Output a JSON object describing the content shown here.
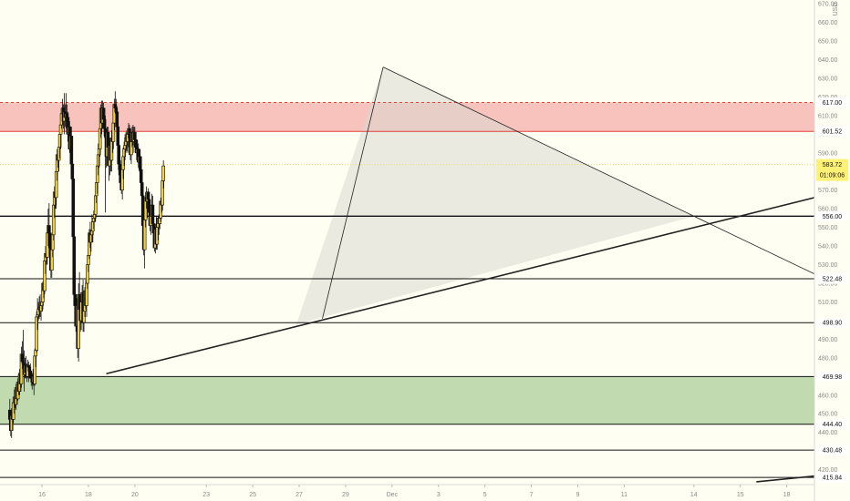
{
  "chart_data": {
    "type": "candlestick",
    "currency": "USD",
    "ylim": [
      412,
      672
    ],
    "xlim": [
      -11,
      901
    ],
    "y_ticks": [
      670,
      660,
      650,
      640,
      630,
      620,
      610,
      600,
      590,
      580,
      570,
      560,
      550,
      540,
      530,
      520,
      510,
      500,
      490,
      480,
      470,
      460,
      450,
      440,
      430,
      420
    ],
    "y_tick_labels": [
      "670.00",
      "660.00",
      "650.00",
      "640.00",
      "630.00",
      "620.00",
      "610.00",
      "600.00",
      "590.00",
      "580.00",
      "570.00",
      "560.00",
      "550.00",
      "540.00",
      "530.00",
      "520.00",
      "510.00",
      "500.00",
      "490.00",
      "480.00",
      "470.00",
      "460.00",
      "450.00",
      "440.00",
      "430.00",
      "420.00"
    ],
    "x_ticks": [
      {
        "i": 36,
        "label": "16"
      },
      {
        "i": 88,
        "label": "18"
      },
      {
        "i": 140,
        "label": "20"
      },
      {
        "i": 220,
        "label": "23"
      },
      {
        "i": 272,
        "label": "25"
      },
      {
        "i": 324,
        "label": "27"
      },
      {
        "i": 376,
        "label": "29"
      },
      {
        "i": 428,
        "label": "Dec"
      },
      {
        "i": 480,
        "label": "3"
      },
      {
        "i": 532,
        "label": "5"
      },
      {
        "i": 584,
        "label": "7"
      },
      {
        "i": 636,
        "label": "9"
      },
      {
        "i": 688,
        "label": "11"
      },
      {
        "i": 766,
        "label": "14"
      },
      {
        "i": 818,
        "label": "15"
      },
      {
        "i": 870,
        "label": "18"
      }
    ],
    "price_levels": [
      {
        "value": 617.0,
        "label": "617.00",
        "style": "dashed-red"
      },
      {
        "value": 601.52,
        "label": "601.52",
        "style": "red"
      },
      {
        "value": 556.0,
        "label": "556.00",
        "style": "black"
      },
      {
        "value": 522.48,
        "label": "522.48",
        "style": "black"
      },
      {
        "value": 498.9,
        "label": "498.90",
        "style": "black"
      },
      {
        "value": 469.98,
        "label": "469.98",
        "style": "black"
      },
      {
        "value": 444.4,
        "label": "444.40",
        "style": "black"
      },
      {
        "value": 430.48,
        "label": "430.48",
        "style": "black"
      },
      {
        "value": 415.84,
        "label": "415.84",
        "style": "black"
      }
    ],
    "last_price": {
      "value": 583.72,
      "label": "583.72",
      "countdown": "01:09:06"
    },
    "zones": [
      {
        "from": 601.52,
        "to": 617.0,
        "color": "#f7b8b2"
      },
      {
        "from": 444.4,
        "to": 469.98,
        "color": "#b6d3a3"
      }
    ],
    "trendlines": [
      {
        "i1": 108,
        "v1": 471.5,
        "i2": 901,
        "v2": 566.0,
        "width": 1.6
      },
      {
        "i1": 350,
        "v1": 501.0,
        "i2": 418,
        "v2": 636.0,
        "width": 0.8
      },
      {
        "i1": 418,
        "v1": 636.0,
        "i2": 901,
        "v2": 525.0,
        "width": 0.8
      },
      {
        "i1": 836,
        "v1": 413.5,
        "i2": 901,
        "v2": 416.6,
        "width": 1.6
      }
    ],
    "triangle": {
      "points": [
        [
          321,
          498.0
        ],
        [
          418,
          636.0
        ],
        [
          766,
          556.0
        ]
      ],
      "color": "#d9d9cf"
    },
    "candle_colors": {
      "up": "#f2d23b",
      "down": "#111111"
    },
    "candles": [
      [
        452,
        458,
        442,
        447
      ],
      [
        447,
        451,
        438,
        441
      ],
      [
        441,
        453,
        437,
        449
      ],
      [
        449,
        455,
        441,
        447
      ],
      [
        447,
        458,
        445,
        456
      ],
      [
        456,
        463,
        450,
        459
      ],
      [
        459,
        462,
        453,
        455
      ],
      [
        455,
        466,
        452,
        464
      ],
      [
        464,
        466,
        455,
        458
      ],
      [
        458,
        469,
        457,
        467
      ],
      [
        467,
        472,
        460,
        462
      ],
      [
        462,
        474,
        460,
        471
      ],
      [
        471,
        478,
        462,
        466
      ],
      [
        466,
        486,
        464,
        482
      ],
      [
        482,
        489,
        474,
        478
      ],
      [
        478,
        495,
        473,
        477
      ],
      [
        477,
        484,
        462,
        471
      ],
      [
        471,
        480,
        469,
        476
      ],
      [
        476,
        481,
        469,
        472
      ],
      [
        472,
        477,
        467,
        470
      ],
      [
        470,
        479,
        469,
        476
      ],
      [
        476,
        478,
        467,
        475
      ],
      [
        475,
        476,
        469,
        473
      ],
      [
        473,
        477,
        470,
        471
      ],
      [
        471,
        473,
        465,
        469
      ],
      [
        469,
        472,
        463,
        467
      ],
      [
        467,
        474,
        465,
        470
      ],
      [
        470,
        472,
        460,
        466
      ],
      [
        466,
        485,
        465,
        481
      ],
      [
        481,
        487,
        475,
        484
      ],
      [
        484,
        505,
        483,
        502
      ],
      [
        502,
        512,
        495,
        503
      ],
      [
        503,
        510,
        500,
        506
      ],
      [
        506,
        513,
        501,
        507
      ],
      [
        507,
        514,
        502,
        505
      ],
      [
        505,
        510,
        500,
        508
      ],
      [
        508,
        515,
        505,
        510
      ],
      [
        510,
        521,
        506,
        520
      ],
      [
        520,
        523,
        512,
        516
      ],
      [
        516,
        535,
        514,
        532
      ],
      [
        532,
        540,
        525,
        536
      ],
      [
        536,
        539,
        530,
        534
      ],
      [
        534,
        549,
        530,
        547
      ],
      [
        547,
        560,
        540,
        551
      ],
      [
        551,
        563,
        545,
        547
      ],
      [
        547,
        551,
        535,
        539
      ],
      [
        539,
        542,
        523,
        527
      ],
      [
        527,
        542,
        523,
        538
      ],
      [
        538,
        552,
        534,
        546
      ],
      [
        546,
        567,
        543,
        562
      ],
      [
        562,
        572,
        555,
        569
      ],
      [
        569,
        573,
        560,
        566
      ],
      [
        566,
        583,
        560,
        580
      ],
      [
        580,
        592,
        575,
        589
      ],
      [
        589,
        593,
        582,
        586
      ],
      [
        586,
        596,
        580,
        593
      ],
      [
        593,
        602,
        587,
        600
      ],
      [
        600,
        609,
        592,
        605
      ],
      [
        605,
        614,
        603,
        611
      ],
      [
        611,
        619,
        605,
        614
      ],
      [
        614,
        616,
        603,
        607
      ],
      [
        607,
        622,
        600,
        612
      ],
      [
        612,
        616,
        604,
        609
      ],
      [
        609,
        622,
        603,
        611
      ],
      [
        611,
        616,
        600,
        609
      ],
      [
        609,
        612,
        596,
        600
      ],
      [
        600,
        607,
        595,
        604
      ],
      [
        604,
        607,
        590,
        592
      ],
      [
        592,
        603,
        585,
        599
      ],
      [
        599,
        604,
        582,
        584
      ],
      [
        584,
        590,
        574,
        576
      ],
      [
        576,
        576,
        540,
        545
      ],
      [
        545,
        548,
        512,
        514
      ],
      [
        514,
        520,
        504,
        508
      ],
      [
        508,
        514,
        494,
        497
      ],
      [
        497,
        512,
        490,
        508
      ],
      [
        508,
        513,
        480,
        485
      ],
      [
        485,
        520,
        478,
        514
      ],
      [
        514,
        526,
        502,
        506
      ],
      [
        506,
        513,
        494,
        500
      ],
      [
        500,
        512,
        495,
        510
      ],
      [
        510,
        519,
        506,
        515
      ],
      [
        515,
        522,
        494,
        499
      ],
      [
        499,
        509,
        494,
        505
      ],
      [
        505,
        518,
        502,
        516
      ],
      [
        516,
        522,
        506,
        508
      ],
      [
        508,
        523,
        502,
        520
      ],
      [
        520,
        534,
        517,
        530
      ],
      [
        530,
        539,
        526,
        535
      ],
      [
        535,
        549,
        533,
        547
      ],
      [
        547,
        553,
        539,
        542
      ],
      [
        542,
        549,
        537,
        546
      ],
      [
        546,
        557,
        542,
        548
      ],
      [
        548,
        555,
        542,
        553
      ],
      [
        553,
        559,
        549,
        555
      ],
      [
        555,
        560,
        553,
        557
      ],
      [
        557,
        569,
        553,
        567
      ],
      [
        567,
        577,
        563,
        574
      ],
      [
        574,
        586,
        568,
        583
      ],
      [
        583,
        595,
        578,
        589
      ],
      [
        589,
        596,
        582,
        592
      ],
      [
        592,
        606,
        588,
        603
      ],
      [
        603,
        616,
        598,
        614
      ],
      [
        614,
        618,
        600,
        606
      ],
      [
        606,
        618,
        603,
        614
      ],
      [
        614,
        617,
        604,
        608
      ],
      [
        608,
        613,
        598,
        603
      ],
      [
        603,
        610,
        558,
        599
      ],
      [
        599,
        603,
        582,
        588
      ],
      [
        588,
        604,
        583,
        601
      ],
      [
        601,
        604,
        588,
        593
      ],
      [
        593,
        596,
        575,
        583
      ],
      [
        583,
        598,
        578,
        594
      ],
      [
        594,
        598,
        580,
        586
      ],
      [
        586,
        602,
        580,
        598
      ],
      [
        598,
        604,
        590,
        596
      ],
      [
        596,
        610,
        592,
        606
      ],
      [
        606,
        619,
        602,
        616
      ],
      [
        616,
        623,
        611,
        614
      ],
      [
        614,
        619,
        610,
        612
      ],
      [
        612,
        615,
        601,
        604
      ],
      [
        604,
        609,
        590,
        594
      ],
      [
        594,
        598,
        578,
        584
      ],
      [
        584,
        590,
        576,
        581
      ],
      [
        581,
        586,
        572,
        574
      ],
      [
        574,
        580,
        568,
        570
      ],
      [
        570,
        585,
        565,
        581
      ],
      [
        581,
        593,
        576,
        588
      ],
      [
        588,
        596,
        583,
        592
      ],
      [
        592,
        600,
        586,
        594
      ],
      [
        594,
        601,
        590,
        598
      ],
      [
        598,
        602,
        591,
        596
      ],
      [
        596,
        601,
        590,
        600
      ],
      [
        600,
        606,
        593,
        603
      ],
      [
        603,
        605,
        595,
        598
      ],
      [
        598,
        602,
        586,
        589
      ],
      [
        589,
        600,
        584,
        596
      ],
      [
        596,
        604,
        593,
        601
      ],
      [
        601,
        605,
        594,
        596
      ],
      [
        596,
        604,
        590,
        601
      ],
      [
        601,
        604,
        594,
        597
      ],
      [
        597,
        600,
        590,
        593
      ],
      [
        593,
        596,
        586,
        590
      ],
      [
        590,
        597,
        586,
        592
      ],
      [
        592,
        595,
        582,
        585
      ],
      [
        585,
        592,
        580,
        588
      ],
      [
        588,
        592,
        578,
        581
      ],
      [
        581,
        584,
        571,
        574
      ],
      [
        574,
        579,
        562,
        567
      ],
      [
        567,
        569,
        543,
        551
      ],
      [
        551,
        556,
        535,
        538
      ],
      [
        538,
        558,
        528,
        554
      ],
      [
        554,
        569,
        550,
        566
      ],
      [
        566,
        572,
        560,
        564
      ],
      [
        564,
        569,
        555,
        569
      ],
      [
        569,
        571,
        560,
        565
      ],
      [
        565,
        568,
        554,
        558
      ],
      [
        558,
        563,
        548,
        551
      ],
      [
        551,
        560,
        546,
        556
      ],
      [
        556,
        568,
        552,
        562
      ],
      [
        562,
        567,
        548,
        552
      ],
      [
        552,
        558,
        542,
        547
      ],
      [
        547,
        552,
        537,
        539
      ],
      [
        539,
        552,
        536,
        549
      ],
      [
        549,
        556,
        538,
        541
      ],
      [
        541,
        555,
        538,
        550
      ],
      [
        550,
        556,
        543,
        555
      ],
      [
        555,
        557,
        546,
        552
      ],
      [
        552,
        559,
        549,
        555
      ],
      [
        555,
        566,
        553,
        564
      ],
      [
        564,
        570,
        558,
        562
      ],
      [
        562,
        578,
        559,
        575
      ],
      [
        575,
        586,
        571,
        583
      ]
    ]
  }
}
